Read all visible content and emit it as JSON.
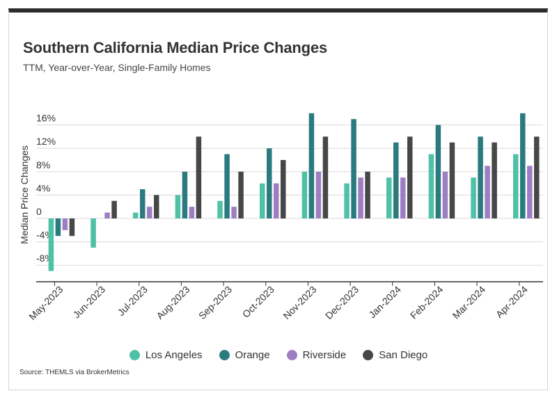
{
  "title": "Southern California Median Price Changes",
  "subtitle": "TTM, Year-over-Year, Single-Family Homes",
  "source": "Source:  THEMLS via BrokerMetrics",
  "chart_data": {
    "type": "bar",
    "title": "Southern California Median Price Changes",
    "subtitle": "TTM, Year-over-Year, Single-Family Homes",
    "xlabel": "",
    "ylabel": "Median Price Changes",
    "ylim": [
      -10,
      17
    ],
    "yticks": [
      16,
      12,
      8,
      4,
      0,
      -4,
      -8
    ],
    "ytick_labels": [
      "16%",
      "12%",
      "8%",
      "4%",
      "0",
      "-4%",
      "-8%"
    ],
    "grid": true,
    "legend_position": "bottom",
    "categories": [
      "May-2023",
      "Jun-2023",
      "Jul-2023",
      "Aug-2023",
      "Sep-2023",
      "Oct-2023",
      "Nov-2023",
      "Dec-2023",
      "Jan-2024",
      "Feb-2024",
      "Mar-2024",
      "Apr-2024"
    ],
    "series": [
      {
        "name": "Los Angeles",
        "color": "#4fc1a6",
        "values": [
          -9,
          -5,
          1,
          4,
          3,
          6,
          8,
          6,
          7,
          11,
          7,
          11
        ]
      },
      {
        "name": "Orange",
        "color": "#2a7a80",
        "values": [
          -3,
          0,
          5,
          8,
          11,
          12,
          18,
          17,
          13,
          16,
          14,
          18
        ]
      },
      {
        "name": "Riverside",
        "color": "#9e7ec2",
        "values": [
          -2,
          1,
          2,
          2,
          2,
          6,
          8,
          7,
          7,
          8,
          9,
          9
        ]
      },
      {
        "name": "San Diego",
        "color": "#474747",
        "values": [
          -3,
          3,
          4,
          14,
          8,
          10,
          14,
          8,
          14,
          13,
          13,
          14
        ]
      }
    ]
  }
}
